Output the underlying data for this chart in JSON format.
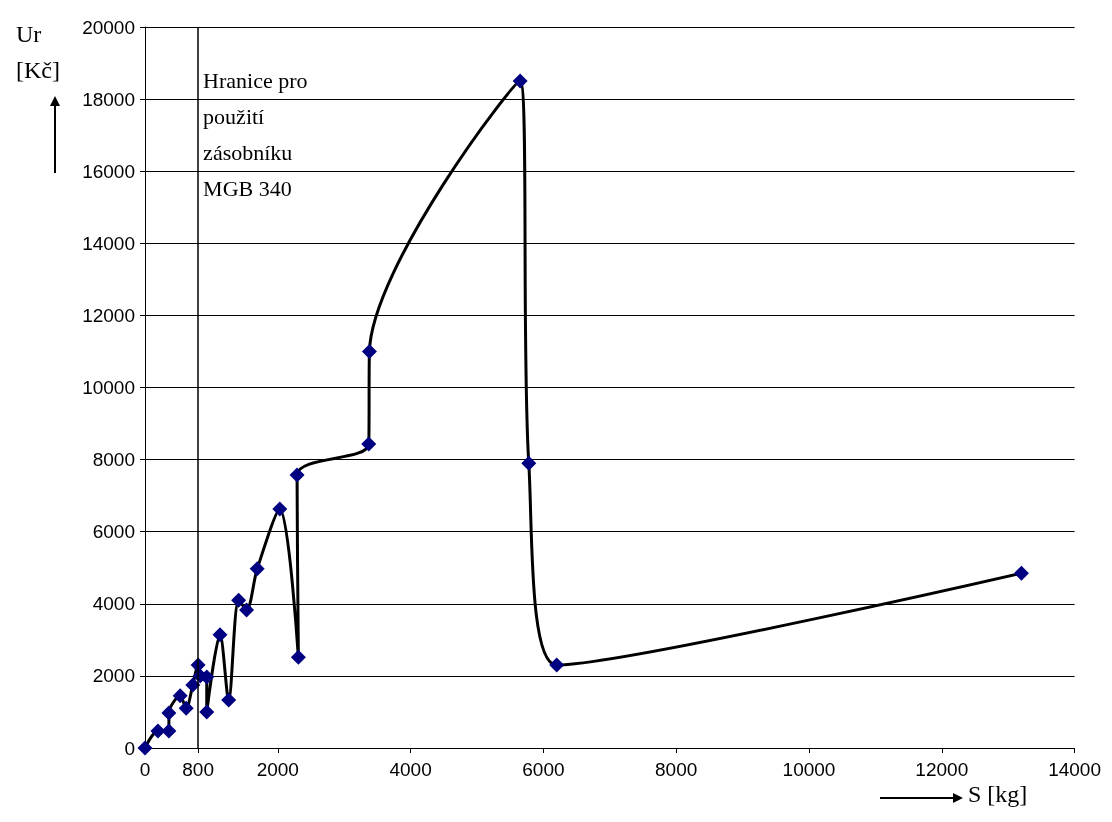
{
  "chart_data": {
    "type": "line",
    "xlabel": "S [kg]",
    "ylabel": "Ur [Kč]",
    "series": [
      {
        "color": "#000080",
        "x": [
          0,
          195,
          360,
          360,
          530,
          620,
          720,
          800,
          830,
          930,
          930,
          1130,
          1260,
          1410,
          1530,
          1690,
          2030,
          2310,
          2290,
          3370,
          3380,
          5650,
          5780,
          6200,
          13200
        ],
        "values": [
          0,
          470,
          470,
          970,
          1450,
          1100,
          1750,
          2300,
          2000,
          1970,
          1000,
          3140,
          1330,
          4100,
          3830,
          4970,
          6630,
          2520,
          7570,
          8430,
          11000,
          18500,
          7900,
          2300,
          4850
        ]
      }
    ],
    "xlim": [
      0,
      14000
    ],
    "xticks": [
      0,
      800,
      2000,
      4000,
      6000,
      8000,
      10000,
      12000,
      14000
    ],
    "ylim": [
      0,
      20000
    ],
    "yticks": [
      0,
      2000,
      4000,
      6000,
      8000,
      10000,
      12000,
      14000,
      16000,
      18000,
      20000
    ],
    "grid": "y",
    "marker": "diamond",
    "line_style": "solid",
    "ref_lines": [
      {
        "axis": "x",
        "value": 800,
        "label": "Hranice pro\npoužití\nzásobníku\nMGB 340",
        "color": "#000000"
      }
    ]
  }
}
